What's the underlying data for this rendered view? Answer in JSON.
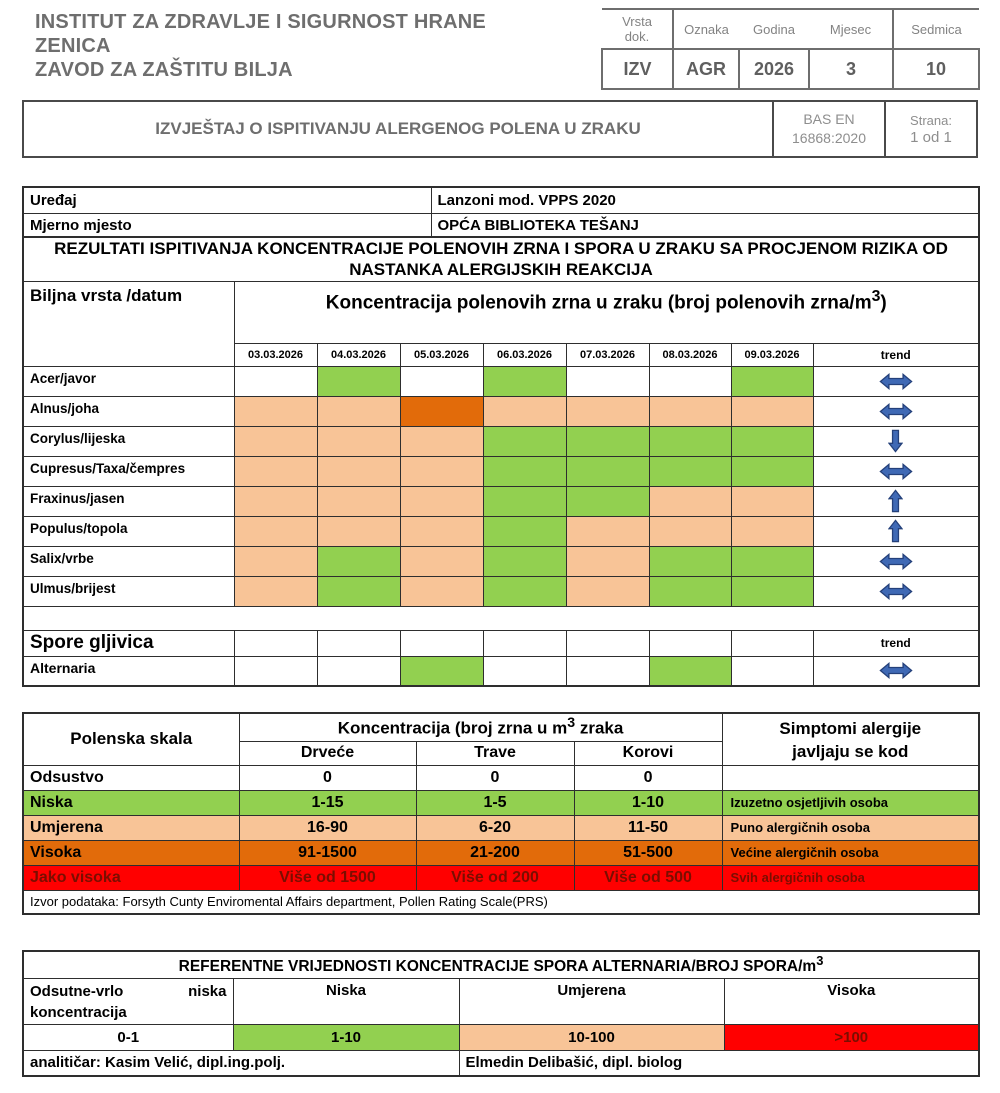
{
  "header": {
    "institute_line1": "INSTITUT ZA ZDRAVLJE I SIGURNOST HRANE",
    "institute_line2": "ZENICA",
    "institute_line3": "ZAVOD ZA ZAŠTITU BILJA",
    "doc_table": {
      "columns": [
        "Vrsta dok.",
        "Oznaka",
        "Godina",
        "Mjesec",
        "Sedmica"
      ],
      "values": [
        "IZV",
        "AGR",
        "2026",
        "3",
        "10"
      ]
    }
  },
  "title_bar": {
    "title": "IZVJEŠTAJ O ISPITIVANJU ALERGENOG POLENA U ZRAKU",
    "standard_line1": "BAS EN",
    "standard_line2": "16868:2020",
    "page_label": "Strana:",
    "page_value": "1 od 1"
  },
  "info": {
    "device_label": "Uređaj",
    "device_value": "Lanzoni mod. VPPS 2020",
    "site_label": "Mjerno mjesto",
    "site_value": "OPĆA BIBLIOTEKA TEŠANJ"
  },
  "results_title": "REZULTATI ISPITIVANJA KONCENTRACIJE POLENOVIH ZRNA I SPORA U ZRAKU SA PROCJENOM RIZIKA OD NASTANKA ALERGIJSKIH REAKCIJA",
  "pollen_table": {
    "row_header": "Biljna vrsta /datum",
    "col_header_pre": "Koncentracija polenovih zrna u zraku (broj polenovih zrna/m",
    "col_header_sup": "3",
    "col_header_post": ")",
    "dates": [
      "03.03.2026",
      "04.03.2026",
      "05.03.2026",
      "06.03.2026",
      "07.03.2026",
      "08.03.2026",
      "09.03.2026"
    ],
    "trend_label": "trend",
    "rows": [
      {
        "name": "Acer/javor",
        "levels": [
          "none",
          "low",
          "none",
          "low",
          "none",
          "none",
          "low"
        ],
        "trend": "stable"
      },
      {
        "name": "Alnus/joha",
        "levels": [
          "moderate",
          "moderate",
          "high",
          "moderate",
          "moderate",
          "moderate",
          "moderate"
        ],
        "trend": "stable"
      },
      {
        "name": "Corylus/lijeska",
        "levels": [
          "moderate",
          "moderate",
          "moderate",
          "low",
          "low",
          "low",
          "low"
        ],
        "trend": "down"
      },
      {
        "name": "Cupresus/Taxa/čempres",
        "levels": [
          "moderate",
          "moderate",
          "moderate",
          "low",
          "low",
          "low",
          "low"
        ],
        "trend": "stable"
      },
      {
        "name": "Fraxinus/jasen",
        "levels": [
          "moderate",
          "moderate",
          "moderate",
          "low",
          "low",
          "moderate",
          "moderate"
        ],
        "trend": "up"
      },
      {
        "name": "Populus/topola",
        "levels": [
          "moderate",
          "moderate",
          "moderate",
          "low",
          "moderate",
          "moderate",
          "moderate"
        ],
        "trend": "up"
      },
      {
        "name": "Salix/vrbe",
        "levels": [
          "moderate",
          "low",
          "moderate",
          "low",
          "moderate",
          "low",
          "low"
        ],
        "trend": "stable"
      },
      {
        "name": "Ulmus/brijest",
        "levels": [
          "moderate",
          "low",
          "moderate",
          "low",
          "moderate",
          "low",
          "low"
        ],
        "trend": "stable"
      }
    ],
    "spores_header": "Spore gljivica",
    "spores_trend_label": "trend",
    "spore_rows": [
      {
        "name": "Alternaria",
        "levels": [
          "none",
          "none",
          "low",
          "none",
          "none",
          "low",
          "none"
        ],
        "trend": "stable"
      }
    ]
  },
  "scale_table": {
    "col1_header": "Polenska skala",
    "conc_header_pre": "Koncentracija (broj zrna u m",
    "conc_header_sup": "3",
    "conc_header_post": " zraka",
    "symptoms_header_line1": "Simptomi alergije",
    "symptoms_header_line2": "javljaju se kod",
    "group_headers": [
      "Drveće",
      "Trave",
      "Korovi"
    ],
    "rows": [
      {
        "label": "Odsustvo",
        "values": [
          "0",
          "0",
          "0"
        ],
        "symptom": null,
        "level": "none"
      },
      {
        "label": "Niska",
        "values": [
          "1-15",
          "1-5",
          "1-10"
        ],
        "symptom": "Izuzetno osjetljivih osoba",
        "level": "low"
      },
      {
        "label": "Umjerena",
        "values": [
          "16-90",
          "6-20",
          "11-50"
        ],
        "symptom": "Puno alergičnih osoba",
        "level": "moderate"
      },
      {
        "label": "Visoka",
        "values": [
          "91-1500",
          "21-200",
          "51-500"
        ],
        "symptom": "Većine alergičnih osoba",
        "level": "high"
      },
      {
        "label": "Jako visoka",
        "values": [
          "Više od 1500",
          "Više od 200",
          "Više od 500"
        ],
        "symptom": "Svih alergičnih osoba",
        "level": "veryhigh"
      }
    ],
    "source_note": "Izvor podataka: Forsyth Cunty Enviromental Affairs department, Pollen Rating Scale(PRS)"
  },
  "alternaria_table": {
    "title_pre": "REFERENTNE VRIJEDNOSTI KONCENTRACIJE SPORA ALTERNARIA/BROJ SPORA/m",
    "title_sup": "3",
    "headers": [
      "Odsutne-vrlo niska koncentracija",
      "Niska",
      "Umjerena",
      "Visoka"
    ],
    "values": [
      {
        "text": "0-1",
        "level": "none"
      },
      {
        "text": "1-10",
        "level": "low"
      },
      {
        "text": "10-100",
        "level": "moderate"
      },
      {
        "text": ">100",
        "level": "veryhigh"
      }
    ],
    "analyst_left": "analitičar: Kasim Velić,  dipl.ing.polj.",
    "analyst_right": "Elmedin Delibašić, dipl. biolog"
  },
  "palette": {
    "none": "#FFFFFF",
    "low": "#92D050",
    "moderate": "#F8C497",
    "high": "#E26B0A",
    "veryhigh": "#FF0000",
    "veryhigh_text": "#7A0E00",
    "trend_arrow": "#3F69B5",
    "trend_arrow_stroke": "#24407A"
  }
}
